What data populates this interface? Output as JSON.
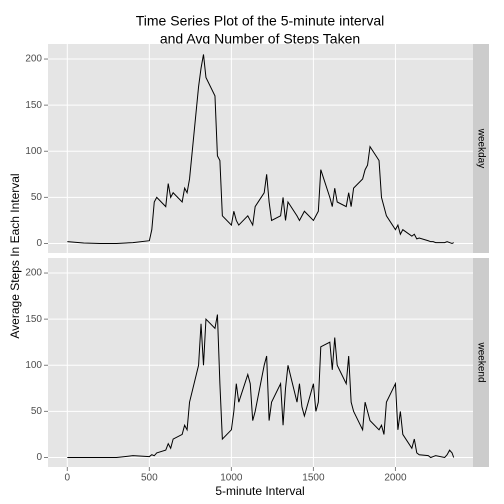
{
  "chart_data": {
    "type": "line",
    "title": [
      "Time Series Plot of the 5-minute interval",
      "and Avg Number of Steps Taken"
    ],
    "xlabel": "5-minute Interval",
    "ylabel": "Average Steps In Each Interval",
    "facet": true,
    "grid": true,
    "color": "#000000",
    "xlim": [
      -117.75,
      2472.75
    ],
    "xticks": [
      0,
      500,
      1000,
      1500,
      2000
    ],
    "ylim": [
      -10.3,
      216.3
    ],
    "yticks": [
      0,
      50,
      100,
      150,
      200
    ],
    "x": [
      0,
      100,
      200,
      300,
      400,
      500,
      515,
      530,
      545,
      600,
      615,
      630,
      645,
      700,
      715,
      730,
      745,
      800,
      815,
      830,
      845,
      900,
      915,
      930,
      945,
      1000,
      1015,
      1030,
      1045,
      1100,
      1115,
      1130,
      1145,
      1200,
      1215,
      1230,
      1245,
      1300,
      1315,
      1330,
      1345,
      1400,
      1415,
      1430,
      1445,
      1500,
      1515,
      1530,
      1545,
      1600,
      1615,
      1630,
      1645,
      1700,
      1715,
      1730,
      1745,
      1800,
      1815,
      1830,
      1845,
      1900,
      1915,
      1930,
      1945,
      2000,
      2015,
      2030,
      2045,
      2100,
      2115,
      2130,
      2145,
      2200,
      2215,
      2230,
      2245,
      2300,
      2315,
      2330,
      2345,
      2355
    ],
    "series": [
      {
        "name": "weekday",
        "values": [
          2,
          0.5,
          0,
          0,
          1,
          3,
          15,
          45,
          50,
          40,
          65,
          50,
          55,
          45,
          60,
          55,
          70,
          170,
          190,
          205,
          180,
          160,
          95,
          90,
          30,
          20,
          35,
          25,
          20,
          30,
          25,
          20,
          40,
          55,
          75,
          45,
          25,
          30,
          50,
          25,
          45,
          30,
          25,
          30,
          35,
          25,
          30,
          35,
          80,
          50,
          40,
          60,
          45,
          40,
          55,
          40,
          60,
          70,
          80,
          85,
          105,
          90,
          50,
          40,
          30,
          15,
          20,
          10,
          15,
          8,
          10,
          5,
          6,
          3,
          2,
          2,
          1,
          1,
          2,
          1,
          0,
          1
        ]
      },
      {
        "name": "weekend",
        "values": [
          0,
          0,
          0,
          0,
          2,
          1,
          3,
          2,
          5,
          8,
          15,
          10,
          20,
          25,
          35,
          30,
          60,
          100,
          145,
          100,
          150,
          140,
          155,
          80,
          20,
          30,
          50,
          80,
          60,
          90,
          80,
          40,
          50,
          100,
          110,
          40,
          60,
          80,
          35,
          75,
          100,
          60,
          80,
          55,
          45,
          80,
          50,
          60,
          120,
          125,
          95,
          130,
          100,
          80,
          110,
          60,
          50,
          30,
          60,
          50,
          40,
          30,
          35,
          25,
          60,
          80,
          30,
          50,
          25,
          10,
          20,
          5,
          3,
          2,
          0,
          1,
          2,
          0,
          3,
          8,
          5,
          0
        ]
      }
    ]
  }
}
